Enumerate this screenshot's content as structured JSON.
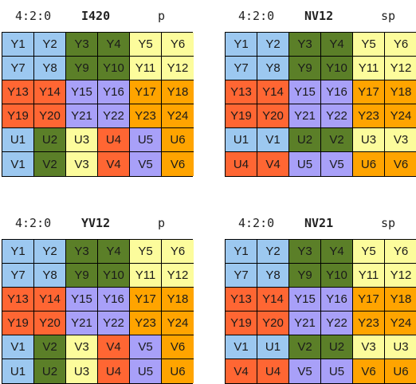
{
  "colors": {
    "blue": "#9cc8f0",
    "green": "#5b7f28",
    "yellow": "#fcfc9c",
    "orange": "#ffa400",
    "red": "#ff6633",
    "purple": "#a8a0f8"
  },
  "panels": [
    {
      "header": {
        "sub": "4:2:0",
        "fmt": "I420",
        "type": "p"
      },
      "rows": [
        [
          {
            "t": "Y1",
            "c": "blue"
          },
          {
            "t": "Y2",
            "c": "blue"
          },
          {
            "t": "Y3",
            "c": "green"
          },
          {
            "t": "Y4",
            "c": "green"
          },
          {
            "t": "Y5",
            "c": "yellow"
          },
          {
            "t": "Y6",
            "c": "yellow"
          }
        ],
        [
          {
            "t": "Y7",
            "c": "blue"
          },
          {
            "t": "Y8",
            "c": "blue"
          },
          {
            "t": "Y9",
            "c": "green"
          },
          {
            "t": "Y10",
            "c": "green"
          },
          {
            "t": "Y11",
            "c": "yellow"
          },
          {
            "t": "Y12",
            "c": "yellow"
          }
        ],
        [
          {
            "t": "Y13",
            "c": "red"
          },
          {
            "t": "Y14",
            "c": "red"
          },
          {
            "t": "Y15",
            "c": "purple"
          },
          {
            "t": "Y16",
            "c": "purple"
          },
          {
            "t": "Y17",
            "c": "orange"
          },
          {
            "t": "Y18",
            "c": "orange"
          }
        ],
        [
          {
            "t": "Y19",
            "c": "red"
          },
          {
            "t": "Y20",
            "c": "red"
          },
          {
            "t": "Y21",
            "c": "purple"
          },
          {
            "t": "Y22",
            "c": "purple"
          },
          {
            "t": "Y23",
            "c": "orange"
          },
          {
            "t": "Y24",
            "c": "orange"
          }
        ],
        [
          {
            "t": "U1",
            "c": "blue"
          },
          {
            "t": "U2",
            "c": "green"
          },
          {
            "t": "U3",
            "c": "yellow"
          },
          {
            "t": "U4",
            "c": "red"
          },
          {
            "t": "U5",
            "c": "purple"
          },
          {
            "t": "U6",
            "c": "orange"
          }
        ],
        [
          {
            "t": "V1",
            "c": "blue"
          },
          {
            "t": "V2",
            "c": "green"
          },
          {
            "t": "V3",
            "c": "yellow"
          },
          {
            "t": "V4",
            "c": "red"
          },
          {
            "t": "V5",
            "c": "purple"
          },
          {
            "t": "V6",
            "c": "orange"
          }
        ]
      ]
    },
    {
      "header": {
        "sub": "4:2:0",
        "fmt": "NV12",
        "type": "sp"
      },
      "rows": [
        [
          {
            "t": "Y1",
            "c": "blue"
          },
          {
            "t": "Y2",
            "c": "blue"
          },
          {
            "t": "Y3",
            "c": "green"
          },
          {
            "t": "Y4",
            "c": "green"
          },
          {
            "t": "Y5",
            "c": "yellow"
          },
          {
            "t": "Y6",
            "c": "yellow"
          }
        ],
        [
          {
            "t": "Y7",
            "c": "blue"
          },
          {
            "t": "Y8",
            "c": "blue"
          },
          {
            "t": "Y9",
            "c": "green"
          },
          {
            "t": "Y10",
            "c": "green"
          },
          {
            "t": "Y11",
            "c": "yellow"
          },
          {
            "t": "Y12",
            "c": "yellow"
          }
        ],
        [
          {
            "t": "Y13",
            "c": "red"
          },
          {
            "t": "Y14",
            "c": "red"
          },
          {
            "t": "Y15",
            "c": "purple"
          },
          {
            "t": "Y16",
            "c": "purple"
          },
          {
            "t": "Y17",
            "c": "orange"
          },
          {
            "t": "Y18",
            "c": "orange"
          }
        ],
        [
          {
            "t": "Y19",
            "c": "red"
          },
          {
            "t": "Y20",
            "c": "red"
          },
          {
            "t": "Y21",
            "c": "purple"
          },
          {
            "t": "Y22",
            "c": "purple"
          },
          {
            "t": "Y23",
            "c": "orange"
          },
          {
            "t": "Y24",
            "c": "orange"
          }
        ],
        [
          {
            "t": "U1",
            "c": "blue"
          },
          {
            "t": "V1",
            "c": "blue"
          },
          {
            "t": "U2",
            "c": "green"
          },
          {
            "t": "V2",
            "c": "green"
          },
          {
            "t": "U3",
            "c": "yellow"
          },
          {
            "t": "V3",
            "c": "yellow"
          }
        ],
        [
          {
            "t": "U4",
            "c": "red"
          },
          {
            "t": "V4",
            "c": "red"
          },
          {
            "t": "U5",
            "c": "purple"
          },
          {
            "t": "V5",
            "c": "purple"
          },
          {
            "t": "U6",
            "c": "orange"
          },
          {
            "t": "V6",
            "c": "orange"
          }
        ]
      ]
    },
    {
      "header": {
        "sub": "4:2:0",
        "fmt": "YV12",
        "type": "p"
      },
      "rows": [
        [
          {
            "t": "Y1",
            "c": "blue"
          },
          {
            "t": "Y2",
            "c": "blue"
          },
          {
            "t": "Y3",
            "c": "green"
          },
          {
            "t": "Y4",
            "c": "green"
          },
          {
            "t": "Y5",
            "c": "yellow"
          },
          {
            "t": "Y6",
            "c": "yellow"
          }
        ],
        [
          {
            "t": "Y7",
            "c": "blue"
          },
          {
            "t": "Y8",
            "c": "blue"
          },
          {
            "t": "Y9",
            "c": "green"
          },
          {
            "t": "Y10",
            "c": "green"
          },
          {
            "t": "Y11",
            "c": "yellow"
          },
          {
            "t": "Y12",
            "c": "yellow"
          }
        ],
        [
          {
            "t": "Y13",
            "c": "red"
          },
          {
            "t": "Y14",
            "c": "red"
          },
          {
            "t": "Y15",
            "c": "purple"
          },
          {
            "t": "Y16",
            "c": "purple"
          },
          {
            "t": "Y17",
            "c": "orange"
          },
          {
            "t": "Y18",
            "c": "orange"
          }
        ],
        [
          {
            "t": "Y19",
            "c": "red"
          },
          {
            "t": "Y20",
            "c": "red"
          },
          {
            "t": "Y21",
            "c": "purple"
          },
          {
            "t": "Y22",
            "c": "purple"
          },
          {
            "t": "Y23",
            "c": "orange"
          },
          {
            "t": "Y24",
            "c": "orange"
          }
        ],
        [
          {
            "t": "V1",
            "c": "blue"
          },
          {
            "t": "V2",
            "c": "green"
          },
          {
            "t": "V3",
            "c": "yellow"
          },
          {
            "t": "V4",
            "c": "red"
          },
          {
            "t": "V5",
            "c": "purple"
          },
          {
            "t": "V6",
            "c": "orange"
          }
        ],
        [
          {
            "t": "U1",
            "c": "blue"
          },
          {
            "t": "U2",
            "c": "green"
          },
          {
            "t": "U3",
            "c": "yellow"
          },
          {
            "t": "U4",
            "c": "red"
          },
          {
            "t": "U5",
            "c": "purple"
          },
          {
            "t": "U6",
            "c": "orange"
          }
        ]
      ]
    },
    {
      "header": {
        "sub": "4:2:0",
        "fmt": "NV21",
        "type": "sp"
      },
      "rows": [
        [
          {
            "t": "Y1",
            "c": "blue"
          },
          {
            "t": "Y2",
            "c": "blue"
          },
          {
            "t": "Y3",
            "c": "green"
          },
          {
            "t": "Y4",
            "c": "green"
          },
          {
            "t": "Y5",
            "c": "yellow"
          },
          {
            "t": "Y6",
            "c": "yellow"
          }
        ],
        [
          {
            "t": "Y7",
            "c": "blue"
          },
          {
            "t": "Y8",
            "c": "blue"
          },
          {
            "t": "Y9",
            "c": "green"
          },
          {
            "t": "Y10",
            "c": "green"
          },
          {
            "t": "Y11",
            "c": "yellow"
          },
          {
            "t": "Y12",
            "c": "yellow"
          }
        ],
        [
          {
            "t": "Y13",
            "c": "red"
          },
          {
            "t": "Y14",
            "c": "red"
          },
          {
            "t": "Y15",
            "c": "purple"
          },
          {
            "t": "Y16",
            "c": "purple"
          },
          {
            "t": "Y17",
            "c": "orange"
          },
          {
            "t": "Y18",
            "c": "orange"
          }
        ],
        [
          {
            "t": "Y19",
            "c": "red"
          },
          {
            "t": "Y20",
            "c": "red"
          },
          {
            "t": "Y21",
            "c": "purple"
          },
          {
            "t": "Y22",
            "c": "purple"
          },
          {
            "t": "Y23",
            "c": "orange"
          },
          {
            "t": "Y24",
            "c": "orange"
          }
        ],
        [
          {
            "t": "V1",
            "c": "blue"
          },
          {
            "t": "U1",
            "c": "blue"
          },
          {
            "t": "V2",
            "c": "green"
          },
          {
            "t": "U2",
            "c": "green"
          },
          {
            "t": "V3",
            "c": "yellow"
          },
          {
            "t": "U3",
            "c": "yellow"
          }
        ],
        [
          {
            "t": "V4",
            "c": "red"
          },
          {
            "t": "U4",
            "c": "red"
          },
          {
            "t": "V5",
            "c": "purple"
          },
          {
            "t": "U5",
            "c": "purple"
          },
          {
            "t": "V6",
            "c": "orange"
          },
          {
            "t": "U6",
            "c": "orange"
          }
        ]
      ]
    }
  ]
}
